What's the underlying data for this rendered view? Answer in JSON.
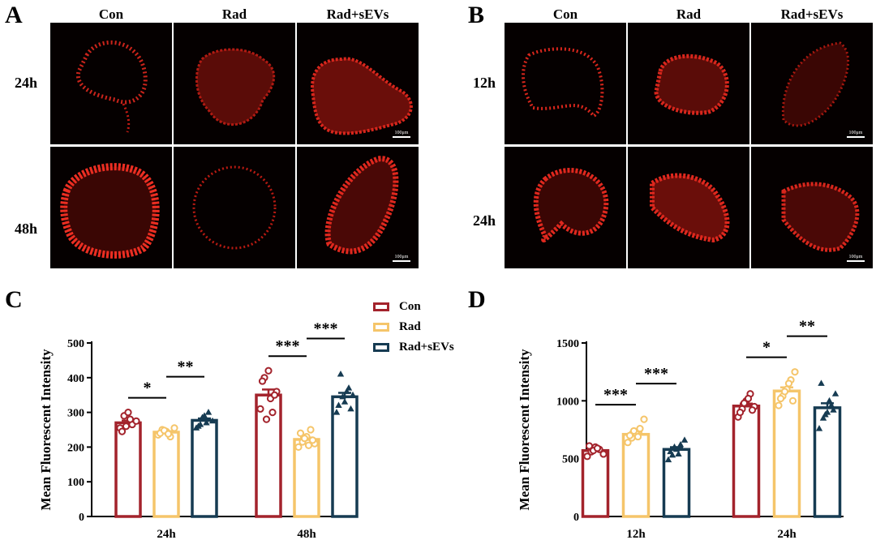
{
  "panels": {
    "A": {
      "letter": "A",
      "columns": [
        "Con",
        "Rad",
        "Rad+sEVs"
      ],
      "rows": [
        "24h",
        "48h"
      ],
      "scale_bar": "100μm"
    },
    "B": {
      "letter": "B",
      "columns": [
        "Con",
        "Rad",
        "Rad+sEVs"
      ],
      "rows": [
        "12h",
        "24h"
      ],
      "scale_bar": "100μm"
    },
    "C": {
      "letter": "C"
    },
    "D": {
      "letter": "D"
    }
  },
  "colors": {
    "con": "#a3232c",
    "rad": "#f5c56a",
    "rad_sevs": "#163b52"
  },
  "legend": [
    {
      "label": "Con",
      "color": "#a3232c"
    },
    {
      "label": "Rad",
      "color": "#f5c56a"
    },
    {
      "label": "Rad+sEVs",
      "color": "#163b52"
    }
  ],
  "chart_data": [
    {
      "type": "bar",
      "panel": "C",
      "categories": [
        "24h",
        "48h"
      ],
      "ylabel": "Mean Fluorescent Intensity",
      "ylim": [
        0,
        500
      ],
      "yticks": [
        0,
        100,
        200,
        300,
        400,
        500
      ],
      "series": [
        {
          "name": "Con",
          "color": "#a3232c",
          "marker": "circle",
          "values": [
            270,
            350
          ],
          "points": [
            [
              255,
              290,
              300,
              265,
              275,
              245,
              260,
              280
            ],
            [
              310,
              400,
              420,
              300,
              360,
              390,
              280,
              340,
              350
            ]
          ]
        },
        {
          "name": "Rad",
          "color": "#f5c56a",
          "marker": "circle",
          "values": [
            243,
            222
          ],
          "points": [
            [
              235,
              250,
              245,
              230,
              255,
              240,
              248,
              238
            ],
            [
              200,
              215,
              230,
              250,
              210,
              240,
              225,
              205,
              220
            ]
          ]
        },
        {
          "name": "Rad+sEVs",
          "color": "#163b52",
          "marker": "triangle",
          "values": [
            277,
            345
          ],
          "points": [
            [
              255,
              265,
              290,
              300,
              275,
              260,
              285,
              270
            ],
            [
              300,
              410,
              330,
              370,
              350,
              320,
              345,
              360,
              310
            ]
          ]
        }
      ],
      "significance": [
        {
          "group": 0,
          "from": 0,
          "to": 1,
          "label": "*"
        },
        {
          "group": 0,
          "from": 1,
          "to": 2,
          "label": "**"
        },
        {
          "group": 1,
          "from": 0,
          "to": 1,
          "label": "***"
        },
        {
          "group": 1,
          "from": 1,
          "to": 2,
          "label": "***"
        }
      ]
    },
    {
      "type": "bar",
      "panel": "D",
      "categories": [
        "12h",
        "24h"
      ],
      "ylabel": "Mean Fluorescent Intensity",
      "ylim": [
        0,
        1500
      ],
      "yticks": [
        0,
        500,
        1000,
        1500
      ],
      "series": [
        {
          "name": "Con",
          "color": "#a3232c",
          "marker": "circle",
          "values": [
            570,
            955
          ],
          "points": [
            [
              520,
              560,
              600,
              580,
              540,
              610,
              570,
              590
            ],
            [
              860,
              930,
              1000,
              1060,
              950,
              900,
              980,
              1020,
              920
            ]
          ]
        },
        {
          "name": "Rad",
          "color": "#f5c56a",
          "marker": "circle",
          "values": [
            710,
            1085
          ],
          "points": [
            [
              640,
              680,
              720,
              760,
              840,
              700,
              740,
              690
            ],
            [
              960,
              1040,
              1100,
              1180,
              1250,
              1020,
              1080,
              1150,
              1000
            ]
          ]
        },
        {
          "name": "Rad+sEVs",
          "color": "#163b52",
          "marker": "triangle",
          "values": [
            580,
            940
          ],
          "points": [
            [
              490,
              530,
              580,
              620,
              660,
              560,
              600,
              540
            ],
            [
              760,
              850,
              900,
              960,
              1060,
              1150,
              880,
              1000,
              920
            ]
          ]
        }
      ],
      "significance": [
        {
          "group": 0,
          "from": 0,
          "to": 1,
          "label": "***"
        },
        {
          "group": 0,
          "from": 1,
          "to": 2,
          "label": "***"
        },
        {
          "group": 1,
          "from": 0,
          "to": 1,
          "label": "*"
        },
        {
          "group": 1,
          "from": 1,
          "to": 2,
          "label": "**"
        }
      ]
    }
  ]
}
